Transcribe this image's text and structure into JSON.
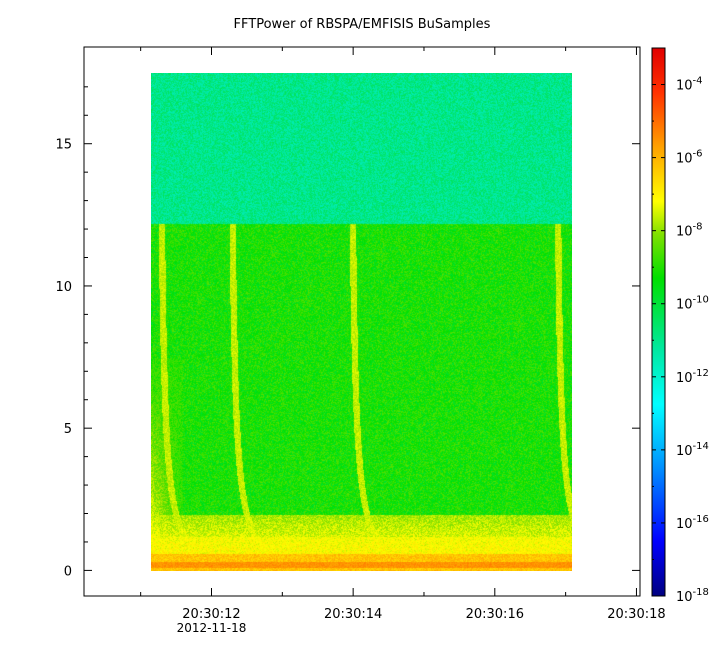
{
  "chart_data": {
    "type": "heatmap",
    "title": "FFTPower of RBSPA/EMFISIS  BuSamples",
    "x": {
      "label": "",
      "ticks": [
        "20:30:12",
        "20:30:14",
        "20:30:16",
        "20:30:18"
      ],
      "tick_values_s": [
        12,
        14,
        16,
        18
      ],
      "range_s": [
        10.2,
        18.05
      ],
      "date_label": "2012-11-18",
      "data_extent_s": [
        11.15,
        17.1
      ]
    },
    "y": {
      "label": "",
      "ticks": [
        "0",
        "5",
        "10",
        "15"
      ],
      "tick_values": [
        0,
        5,
        10,
        15
      ],
      "range": [
        -0.9,
        18.4
      ],
      "data_extent": [
        0,
        17.5
      ]
    },
    "colorbar": {
      "scale": "log",
      "range": [
        1e-18,
        0.001
      ],
      "tick_bases": [
        "10",
        "10",
        "10",
        "10",
        "10",
        "10",
        "10",
        "10"
      ],
      "tick_exponents": [
        "-4",
        "-6",
        "-8",
        "-10",
        "-12",
        "-14",
        "-16",
        "-18"
      ],
      "tick_values_log10": [
        -4,
        -6,
        -8,
        -10,
        -12,
        -14,
        -16,
        -18
      ],
      "colormap": [
        "#ffffff",
        "#000080",
        "#0000ff",
        "#00a0ff",
        "#00ffff",
        "#00e8a0",
        "#00e000",
        "#80e000",
        "#ffff00",
        "#ffa000",
        "#ff3000",
        "#e00000"
      ]
    },
    "features": {
      "background_level_log10_above_12_2": -12.2,
      "background_level_log10_below_12_2": -10.6,
      "low_frequency_band_log10": -7.5,
      "whistler_start_times_s": [
        11.2,
        12.2,
        13.9,
        16.8
      ],
      "grid": false
    }
  }
}
